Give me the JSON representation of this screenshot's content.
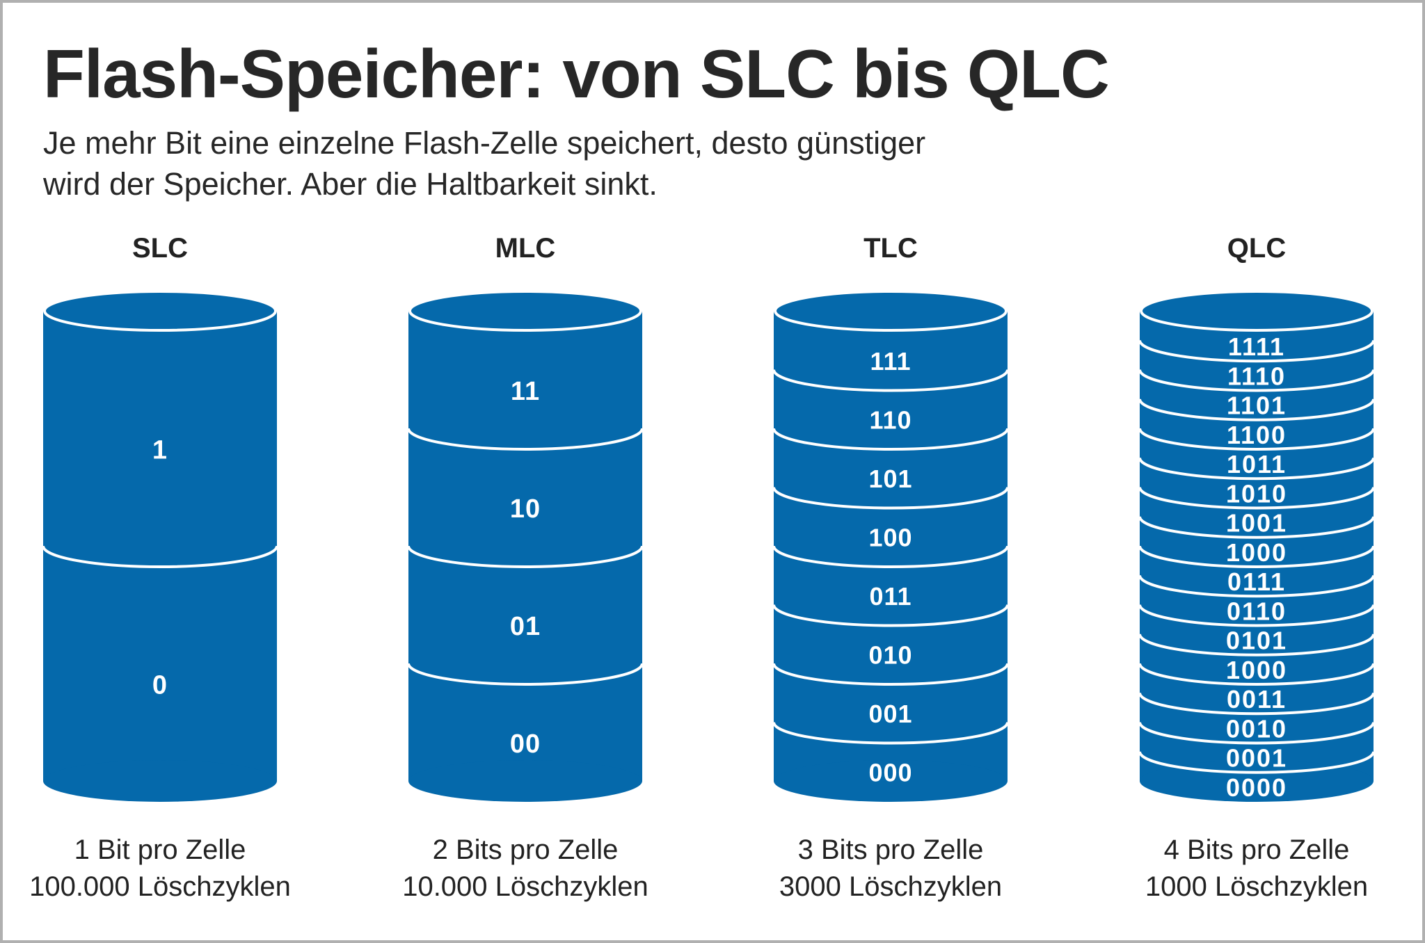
{
  "title": "Flash-Speicher: von SLC bis QLC",
  "subtitle": [
    "Je mehr Bit eine einzelne Flash-Zelle speichert, desto günstiger",
    "wird der Speicher. Aber die Haltbarkeit sinkt."
  ],
  "colors": {
    "cylinder": "#0569ab",
    "text": "#272727"
  },
  "columns": [
    {
      "name": "SLC",
      "levels": [
        "1",
        "0"
      ],
      "bits": "1 Bit pro Zelle",
      "cycles": "100.000 Löschzyklen"
    },
    {
      "name": "MLC",
      "levels": [
        "11",
        "10",
        "01",
        "00"
      ],
      "bits": "2 Bits pro Zelle",
      "cycles": "10.000 Löschzyklen"
    },
    {
      "name": "TLC",
      "levels": [
        "111",
        "110",
        "101",
        "100",
        "011",
        "010",
        "001",
        "000"
      ],
      "bits": "3 Bits pro Zelle",
      "cycles": "3000 Löschzyklen"
    },
    {
      "name": "QLC",
      "levels": [
        "1111",
        "1110",
        "1101",
        "1100",
        "1011",
        "1010",
        "1001",
        "1000",
        "0111",
        "0110",
        "0101",
        "1000",
        "0011",
        "0010",
        "0001",
        "0000"
      ],
      "bits": "4 Bits pro Zelle",
      "cycles": "1000 Löschzyklen"
    }
  ]
}
